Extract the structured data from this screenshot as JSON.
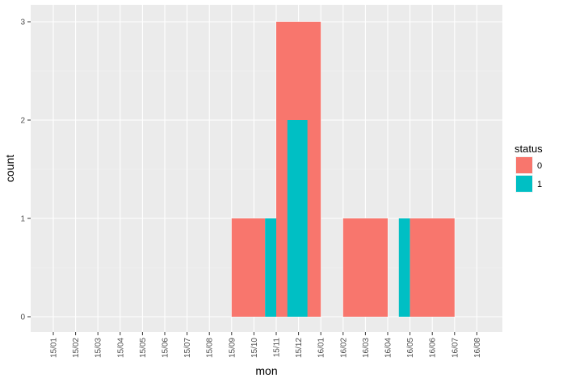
{
  "chart_data": {
    "type": "bar",
    "xlabel": "mon",
    "ylabel": "count",
    "categories": [
      "15/01",
      "15/02",
      "15/03",
      "15/04",
      "15/05",
      "15/06",
      "15/07",
      "15/08",
      "15/09",
      "15/10",
      "15/11",
      "15/12",
      "16/01",
      "16/02",
      "16/03",
      "16/04",
      "16/05",
      "16/06",
      "16/07",
      "16/08"
    ],
    "ylim": [
      0,
      3
    ],
    "yticks": [
      0,
      1,
      2,
      3
    ],
    "grid": true,
    "background": "#ebebeb",
    "legend": {
      "title": "status",
      "placement": "right",
      "entries": [
        {
          "label": "0",
          "color": "#F8766D"
        },
        {
          "label": "1",
          "color": "#00BFC4"
        }
      ]
    },
    "bars": [
      {
        "status": "0",
        "x_start": "15/09",
        "x_end": "15/10.5",
        "count": 1,
        "color": "#F8766D"
      },
      {
        "status": "1",
        "x_start": "15/10.5",
        "x_end": "15/11",
        "count": 1,
        "color": "#00BFC4"
      },
      {
        "status": "0",
        "x_start": "15/11",
        "x_end": "16/01",
        "count": 3,
        "color": "#F8766D"
      },
      {
        "status": "1",
        "x_start": "15/11.5",
        "x_end": "15/12.4",
        "count": 2,
        "color": "#00BFC4"
      },
      {
        "status": "0",
        "x_start": "16/02",
        "x_end": "16/04",
        "count": 1,
        "color": "#F8766D"
      },
      {
        "status": "1",
        "x_start": "16/04.5",
        "x_end": "16/05",
        "count": 1,
        "color": "#00BFC4"
      },
      {
        "status": "0",
        "x_start": "16/05",
        "x_end": "16/07",
        "count": 1,
        "color": "#F8766D"
      }
    ]
  }
}
